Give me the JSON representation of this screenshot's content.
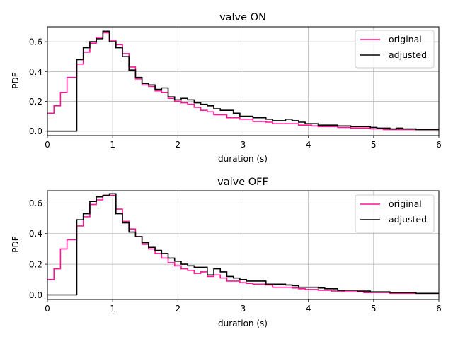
{
  "chart_data": [
    {
      "type": "line",
      "step": true,
      "title": "valve ON",
      "xlabel": "duration (s)",
      "ylabel": "PDF",
      "xlim": [
        0,
        6
      ],
      "ylim": [
        -0.03,
        0.7
      ],
      "xticks": [
        0,
        1,
        2,
        3,
        4,
        5,
        6
      ],
      "yticks": [
        0.0,
        0.2,
        0.4,
        0.6
      ],
      "ytick_labels": [
        "0.0",
        "0.2",
        "0.4",
        "0.6"
      ],
      "grid": true,
      "legend": "top-right",
      "bin_edges": [
        0,
        0.1,
        0.2,
        0.3,
        0.4,
        0.45,
        0.55,
        0.65,
        0.75,
        0.85,
        0.95,
        1.05,
        1.15,
        1.25,
        1.35,
        1.45,
        1.55,
        1.65,
        1.75,
        1.85,
        1.95,
        2.05,
        2.15,
        2.25,
        2.35,
        2.45,
        2.55,
        2.65,
        2.75,
        2.85,
        2.95,
        3.05,
        3.15,
        3.25,
        3.35,
        3.45,
        3.55,
        3.65,
        3.75,
        3.85,
        3.95,
        4.05,
        4.15,
        4.25,
        4.35,
        4.45,
        4.55,
        4.65,
        4.75,
        4.85,
        4.95,
        5.05,
        5.15,
        5.25,
        5.35,
        5.45,
        5.55,
        5.65,
        5.75,
        5.85,
        5.95,
        6.0
      ],
      "series": [
        {
          "name": "original",
          "color": "#ff1493",
          "values": [
            0.12,
            0.17,
            0.26,
            0.36,
            0.36,
            0.45,
            0.53,
            0.59,
            0.63,
            0.66,
            0.61,
            0.58,
            0.52,
            0.43,
            0.35,
            0.31,
            0.3,
            0.27,
            0.26,
            0.22,
            0.2,
            0.19,
            0.18,
            0.16,
            0.14,
            0.13,
            0.11,
            0.11,
            0.09,
            0.09,
            0.08,
            0.08,
            0.065,
            0.065,
            0.06,
            0.05,
            0.05,
            0.05,
            0.05,
            0.04,
            0.04,
            0.035,
            0.03,
            0.03,
            0.03,
            0.025,
            0.025,
            0.02,
            0.02,
            0.02,
            0.015,
            0.015,
            0.01,
            0.01,
            0.01,
            0.01,
            0.01,
            0.01,
            0.01,
            0.01,
            0.01
          ]
        },
        {
          "name": "adjusted",
          "color": "#000000",
          "values": [
            0.0,
            0.0,
            0.0,
            0.0,
            0.0,
            0.48,
            0.56,
            0.6,
            0.62,
            0.67,
            0.6,
            0.56,
            0.5,
            0.41,
            0.36,
            0.32,
            0.31,
            0.28,
            0.29,
            0.23,
            0.21,
            0.22,
            0.21,
            0.19,
            0.18,
            0.17,
            0.15,
            0.14,
            0.14,
            0.12,
            0.1,
            0.1,
            0.09,
            0.09,
            0.08,
            0.07,
            0.07,
            0.08,
            0.07,
            0.06,
            0.05,
            0.05,
            0.04,
            0.04,
            0.04,
            0.035,
            0.035,
            0.03,
            0.03,
            0.03,
            0.025,
            0.02,
            0.02,
            0.015,
            0.02,
            0.015,
            0.015,
            0.01,
            0.01,
            0.01,
            0.01
          ]
        }
      ]
    },
    {
      "type": "line",
      "step": true,
      "title": "valve OFF",
      "xlabel": "duration (s)",
      "ylabel": "PDF",
      "xlim": [
        0,
        6
      ],
      "ylim": [
        -0.03,
        0.68
      ],
      "xticks": [
        0,
        1,
        2,
        3,
        4,
        5,
        6
      ],
      "yticks": [
        0.0,
        0.2,
        0.4,
        0.6
      ],
      "ytick_labels": [
        "0.0",
        "0.2",
        "0.4",
        "0.6"
      ],
      "grid": true,
      "legend": "top-right",
      "bin_edges": [
        0,
        0.1,
        0.2,
        0.3,
        0.4,
        0.45,
        0.55,
        0.65,
        0.75,
        0.85,
        0.95,
        1.05,
        1.15,
        1.25,
        1.35,
        1.45,
        1.55,
        1.65,
        1.75,
        1.85,
        1.95,
        2.05,
        2.15,
        2.25,
        2.35,
        2.45,
        2.55,
        2.65,
        2.75,
        2.85,
        2.95,
        3.05,
        3.15,
        3.25,
        3.35,
        3.45,
        3.55,
        3.65,
        3.75,
        3.85,
        3.95,
        4.05,
        4.15,
        4.25,
        4.35,
        4.45,
        4.55,
        4.65,
        4.75,
        4.85,
        4.95,
        5.05,
        5.15,
        5.25,
        5.35,
        5.45,
        5.55,
        5.65,
        5.75,
        5.85,
        5.95,
        6.0
      ],
      "series": [
        {
          "name": "original",
          "color": "#ff1493",
          "values": [
            0.1,
            0.17,
            0.3,
            0.36,
            0.36,
            0.45,
            0.51,
            0.59,
            0.62,
            0.65,
            0.65,
            0.56,
            0.48,
            0.43,
            0.38,
            0.33,
            0.3,
            0.27,
            0.24,
            0.21,
            0.19,
            0.17,
            0.16,
            0.14,
            0.15,
            0.12,
            0.13,
            0.11,
            0.09,
            0.09,
            0.08,
            0.075,
            0.07,
            0.07,
            0.065,
            0.05,
            0.05,
            0.05,
            0.045,
            0.04,
            0.035,
            0.035,
            0.03,
            0.03,
            0.025,
            0.025,
            0.02,
            0.02,
            0.02,
            0.015,
            0.015,
            0.015,
            0.015,
            0.01,
            0.01,
            0.01,
            0.01,
            0.01,
            0.01,
            0.01,
            0.01
          ]
        },
        {
          "name": "adjusted",
          "color": "#000000",
          "values": [
            0.0,
            0.0,
            0.0,
            0.0,
            0.0,
            0.49,
            0.53,
            0.61,
            0.64,
            0.65,
            0.66,
            0.53,
            0.47,
            0.41,
            0.38,
            0.34,
            0.31,
            0.29,
            0.27,
            0.24,
            0.22,
            0.2,
            0.19,
            0.18,
            0.18,
            0.13,
            0.17,
            0.15,
            0.12,
            0.11,
            0.1,
            0.09,
            0.09,
            0.09,
            0.07,
            0.07,
            0.07,
            0.065,
            0.06,
            0.05,
            0.05,
            0.05,
            0.045,
            0.04,
            0.04,
            0.03,
            0.03,
            0.03,
            0.025,
            0.025,
            0.02,
            0.02,
            0.02,
            0.015,
            0.015,
            0.015,
            0.015,
            0.01,
            0.01,
            0.01,
            0.01
          ]
        }
      ]
    }
  ]
}
